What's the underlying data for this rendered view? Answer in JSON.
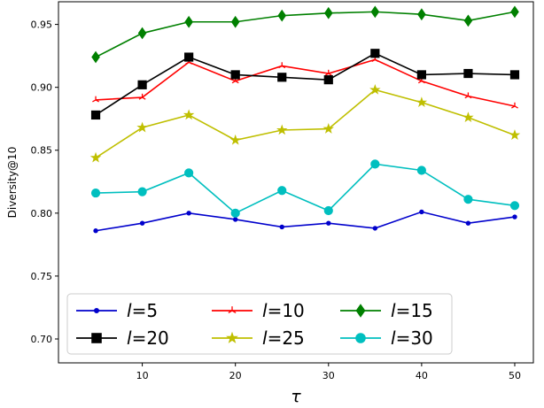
{
  "chart_data": {
    "type": "line",
    "title": "",
    "xlabel": "τ",
    "ylabel": "Diversity@10",
    "x": [
      5,
      10,
      15,
      20,
      25,
      30,
      35,
      40,
      45,
      50
    ],
    "xlim": [
      1,
      52
    ],
    "ylim": [
      0.681,
      0.968
    ],
    "xticks": [
      10,
      20,
      30,
      40,
      50
    ],
    "yticks": [
      0.7,
      0.75,
      0.8,
      0.85,
      0.9,
      0.95
    ],
    "ytick_labels": [
      "0.70",
      "0.75",
      "0.80",
      "0.85",
      "0.90",
      "0.95"
    ],
    "xtick_labels": [
      "10",
      "20",
      "30",
      "40",
      "50"
    ],
    "grid": false,
    "legend": {
      "position": "lower-left",
      "columns": 3
    },
    "series": [
      {
        "name": "l=5",
        "var": "l",
        "val": "=5",
        "color": "#0000cc",
        "marker": "point",
        "values": [
          0.786,
          0.792,
          0.8,
          0.795,
          0.789,
          0.792,
          0.788,
          0.801,
          0.792,
          0.797
        ]
      },
      {
        "name": "l=10",
        "var": "l",
        "val": "=10",
        "color": "#ff0000",
        "marker": "tri",
        "values": [
          0.89,
          0.892,
          0.92,
          0.905,
          0.917,
          0.911,
          0.922,
          0.905,
          0.893,
          0.885
        ]
      },
      {
        "name": "l=15",
        "var": "l",
        "val": "=15",
        "color": "#008000",
        "marker": "diamond",
        "values": [
          0.924,
          0.943,
          0.952,
          0.952,
          0.957,
          0.959,
          0.96,
          0.958,
          0.953,
          0.96
        ]
      },
      {
        "name": "l=20",
        "var": "l",
        "val": "=20",
        "color": "#000000",
        "marker": "square",
        "values": [
          0.878,
          0.902,
          0.924,
          0.91,
          0.908,
          0.906,
          0.927,
          0.91,
          0.911,
          0.91
        ]
      },
      {
        "name": "l=25",
        "var": "l",
        "val": "=25",
        "color": "#bfbf00",
        "marker": "star",
        "values": [
          0.844,
          0.868,
          0.878,
          0.858,
          0.866,
          0.867,
          0.898,
          0.888,
          0.876,
          0.862
        ]
      },
      {
        "name": "l=30",
        "var": "l",
        "val": "=30",
        "color": "#00bfbf",
        "marker": "circle",
        "values": [
          0.816,
          0.817,
          0.832,
          0.8,
          0.818,
          0.802,
          0.839,
          0.834,
          0.811,
          0.806
        ]
      }
    ]
  }
}
